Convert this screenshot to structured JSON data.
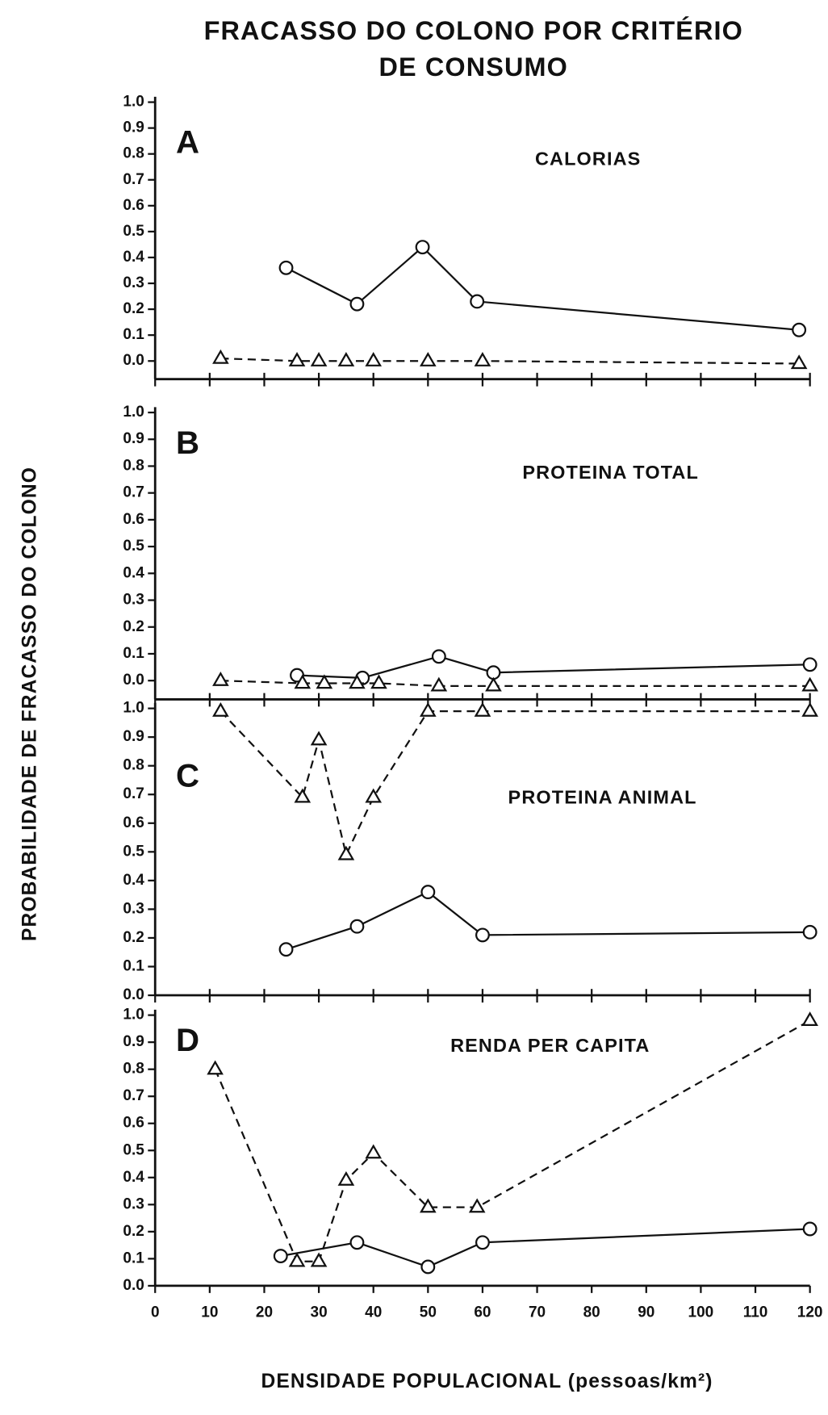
{
  "title": [
    "FRACASSO DO COLONO POR CRITÉRIO",
    "DE CONSUMO"
  ],
  "ylabel": "PROBABILIDADE DE FRACASSO DO COLONO",
  "xlabel": "DENSIDADE POPULACIONAL (pessoas/km²)",
  "chart_data": [
    {
      "type": "line",
      "panel": "A",
      "subtitle": "CALORIAS",
      "xlim": [
        0,
        120
      ],
      "xticks": [
        0,
        10,
        20,
        30,
        40,
        50,
        60,
        70,
        80,
        90,
        100,
        110,
        120
      ],
      "ylim": [
        -0.07,
        1.0
      ],
      "yticks": [
        {
          "value": 0,
          "label": "0.0"
        },
        {
          "value": 0.1,
          "label": "0.1"
        },
        {
          "value": 0.2,
          "label": "0.2"
        },
        {
          "value": 0.3,
          "label": "0.3"
        },
        {
          "value": 0.4,
          "label": "0.4"
        },
        {
          "value": 0.5,
          "label": "0.5"
        },
        {
          "value": 0.6,
          "label": "0.6"
        },
        {
          "value": 0.7,
          "label": "0.7"
        },
        {
          "value": 0.8,
          "label": "0.8"
        },
        {
          "value": 0.9,
          "label": "0.9"
        },
        {
          "value": 1.0,
          "label": "1.0"
        }
      ],
      "series": [
        {
          "marker": "circle",
          "dashed": false,
          "color": "#111111",
          "x": [
            24,
            37,
            49,
            59,
            118
          ],
          "values": [
            0.36,
            0.22,
            0.44,
            0.23,
            0.12
          ]
        },
        {
          "marker": "triangle",
          "dashed": true,
          "color": "#111111",
          "x": [
            12,
            26,
            30,
            35,
            40,
            50,
            60,
            118
          ],
          "values": [
            0.01,
            0.0,
            0.0,
            0.0,
            0.0,
            0.0,
            0.0,
            -0.01
          ]
        }
      ]
    },
    {
      "type": "line",
      "panel": "B",
      "subtitle": "PROTEINA TOTAL",
      "xlim": [
        0,
        120
      ],
      "xticks": [
        0,
        10,
        20,
        30,
        40,
        50,
        60,
        70,
        80,
        90,
        100,
        110,
        120
      ],
      "ylim": [
        -0.07,
        1.0
      ],
      "yticks": [
        {
          "value": 0,
          "label": "0.0"
        },
        {
          "value": 0.1,
          "label": "0.1"
        },
        {
          "value": 0.2,
          "label": "0.2"
        },
        {
          "value": 0.3,
          "label": "0.3"
        },
        {
          "value": 0.4,
          "label": "0.4"
        },
        {
          "value": 0.5,
          "label": "0.5"
        },
        {
          "value": 0.6,
          "label": "0.6"
        },
        {
          "value": 0.7,
          "label": "0.7"
        },
        {
          "value": 0.8,
          "label": "0.8"
        },
        {
          "value": 0.9,
          "label": "0.9"
        },
        {
          "value": 1.0,
          "label": "1.0"
        }
      ],
      "series": [
        {
          "marker": "circle",
          "dashed": false,
          "color": "#111111",
          "x": [
            26,
            38,
            52,
            62,
            120
          ],
          "values": [
            0.02,
            0.01,
            0.09,
            0.03,
            0.06
          ]
        },
        {
          "marker": "triangle",
          "dashed": true,
          "color": "#111111",
          "x": [
            12,
            27,
            31,
            37,
            41,
            52,
            62,
            120
          ],
          "values": [
            0.0,
            -0.01,
            -0.01,
            -0.01,
            -0.01,
            -0.02,
            -0.02,
            -0.02
          ]
        }
      ]
    },
    {
      "type": "line",
      "panel": "C",
      "subtitle": "PROTEINA ANIMAL",
      "xlim": [
        0,
        120
      ],
      "xticks": [
        0,
        10,
        20,
        30,
        40,
        50,
        60,
        70,
        80,
        90,
        100,
        110,
        120
      ],
      "ylim": [
        0,
        1.0
      ],
      "yticks": [
        {
          "value": 0,
          "label": "0.0"
        },
        {
          "value": 0.1,
          "label": "0.1"
        },
        {
          "value": 0.2,
          "label": "0.2"
        },
        {
          "value": 0.3,
          "label": "0.3"
        },
        {
          "value": 0.4,
          "label": "0.4"
        },
        {
          "value": 0.5,
          "label": "0.5"
        },
        {
          "value": 0.6,
          "label": "0.6"
        },
        {
          "value": 0.7,
          "label": "0.7"
        },
        {
          "value": 0.8,
          "label": "0.8"
        },
        {
          "value": 0.9,
          "label": "0.9"
        },
        {
          "value": 1.0,
          "label": "1.0"
        }
      ],
      "series": [
        {
          "marker": "triangle",
          "dashed": true,
          "color": "#111111",
          "x": [
            12,
            27,
            30,
            35,
            40,
            50,
            60,
            120
          ],
          "values": [
            0.99,
            0.69,
            0.89,
            0.49,
            0.69,
            0.99,
            0.99,
            0.99
          ]
        },
        {
          "marker": "circle",
          "dashed": false,
          "color": "#111111",
          "x": [
            24,
            37,
            50,
            60,
            120
          ],
          "values": [
            0.16,
            0.24,
            0.36,
            0.21,
            0.22
          ]
        }
      ]
    },
    {
      "type": "line",
      "panel": "D",
      "subtitle": "RENDA PER CAPITA",
      "xlim": [
        0,
        120
      ],
      "xticks": [
        0,
        10,
        20,
        30,
        40,
        50,
        60,
        70,
        80,
        90,
        100,
        110,
        120
      ],
      "ylim": [
        0,
        1.0
      ],
      "yticks": [
        {
          "value": 0,
          "label": "0.0"
        },
        {
          "value": 0.1,
          "label": "0.1"
        },
        {
          "value": 0.2,
          "label": "0.2"
        },
        {
          "value": 0.3,
          "label": "0.3"
        },
        {
          "value": 0.4,
          "label": "0.4"
        },
        {
          "value": 0.5,
          "label": "0.5"
        },
        {
          "value": 0.6,
          "label": "0.6"
        },
        {
          "value": 0.7,
          "label": "0.7"
        },
        {
          "value": 0.8,
          "label": "0.8"
        },
        {
          "value": 0.9,
          "label": "0.9"
        },
        {
          "value": 1.0,
          "label": "1.0"
        }
      ],
      "series": [
        {
          "marker": "triangle",
          "dashed": true,
          "color": "#111111",
          "x": [
            11,
            26,
            30,
            35,
            40,
            50,
            59,
            120
          ],
          "values": [
            0.8,
            0.09,
            0.09,
            0.39,
            0.49,
            0.29,
            0.29,
            0.98
          ]
        },
        {
          "marker": "circle",
          "dashed": false,
          "color": "#111111",
          "x": [
            23,
            37,
            50,
            60,
            120
          ],
          "values": [
            0.11,
            0.16,
            0.07,
            0.16,
            0.21
          ]
        }
      ]
    }
  ]
}
